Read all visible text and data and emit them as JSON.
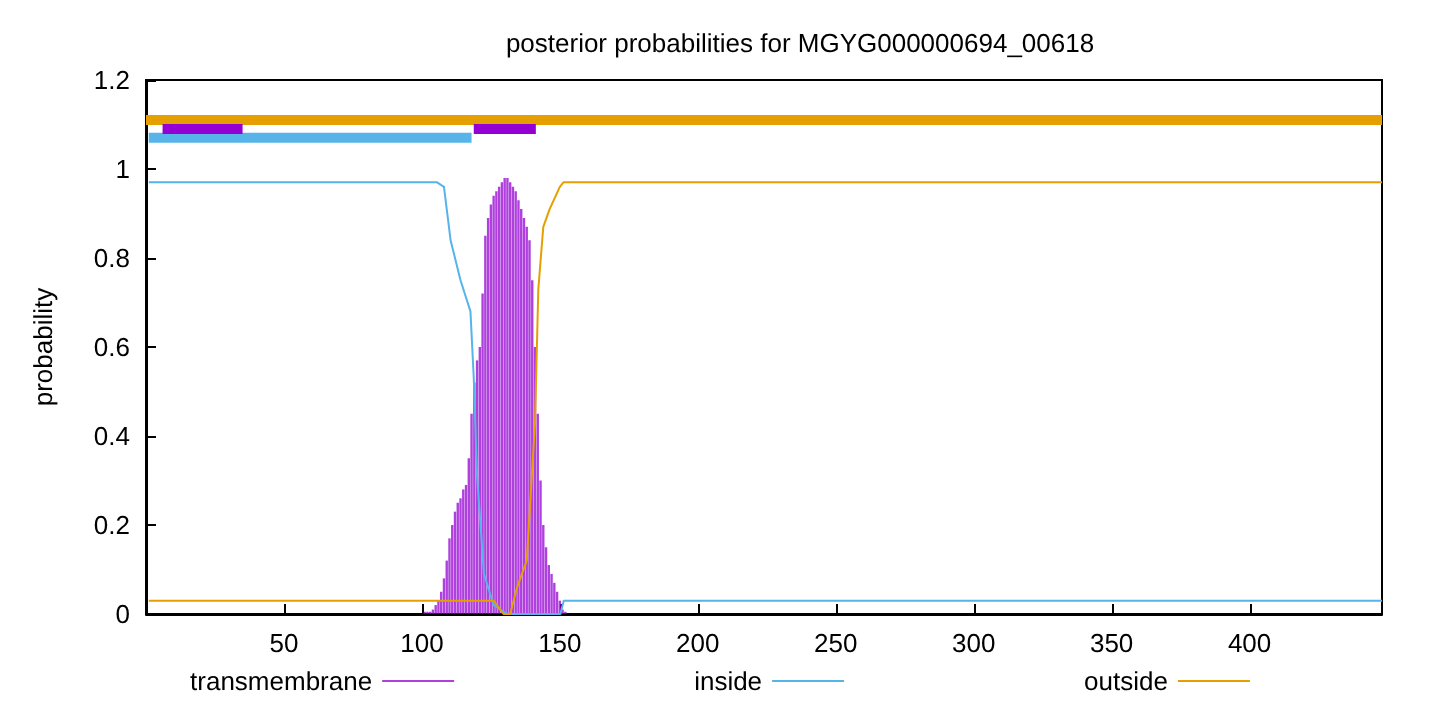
{
  "chart_data": {
    "type": "line",
    "title": "posterior probabilities for MGYG000000694_00618",
    "ylabel": "probability",
    "xlim": [
      0,
      448
    ],
    "xticks": [
      50,
      100,
      150,
      200,
      250,
      300,
      350,
      400
    ],
    "ylim": [
      0,
      1.2
    ],
    "yticks": [
      0,
      0.2,
      0.4,
      0.6,
      0.8,
      1,
      1.2
    ],
    "grid": false,
    "legend": "bottom",
    "marker": "none",
    "line_style": "solid",
    "series": [
      {
        "name": "transmembrane",
        "type": "bar",
        "color": "#9400d3",
        "x": [
          101,
          102,
          103,
          104,
          105,
          106,
          107,
          108,
          109,
          110,
          111,
          112,
          113,
          114,
          115,
          116,
          117,
          118,
          119,
          120,
          121,
          122,
          123,
          124,
          125,
          126,
          127,
          128,
          129,
          130,
          131,
          132,
          133,
          134,
          135,
          136,
          137,
          138,
          139,
          140,
          141,
          142,
          143,
          144,
          145,
          146,
          147,
          148,
          149,
          150,
          151,
          152
        ],
        "values": [
          0.005,
          0.005,
          0.005,
          0.01,
          0.02,
          0.03,
          0.05,
          0.08,
          0.12,
          0.17,
          0.2,
          0.23,
          0.25,
          0.26,
          0.28,
          0.29,
          0.35,
          0.45,
          0.52,
          0.57,
          0.6,
          0.72,
          0.85,
          0.89,
          0.92,
          0.94,
          0.95,
          0.96,
          0.97,
          0.98,
          0.98,
          0.97,
          0.96,
          0.95,
          0.93,
          0.91,
          0.89,
          0.87,
          0.84,
          0.75,
          0.6,
          0.45,
          0.3,
          0.2,
          0.15,
          0.11,
          0.09,
          0.07,
          0.05,
          0.03,
          0.01,
          0.005
        ]
      },
      {
        "name": "inside",
        "color": "#56b4e9",
        "x": [
          1,
          105.5,
          108,
          110.4,
          114,
          117.6,
          118.8,
          120,
          122.5,
          126,
          130.9,
          150.2,
          151.4,
          448
        ],
        "values": [
          0.97,
          0.97,
          0.96,
          0.84,
          0.75,
          0.68,
          0.53,
          0.31,
          0.09,
          0.02,
          0,
          0,
          0.03,
          0.03
        ]
      },
      {
        "name": "outside",
        "color": "#e69f00",
        "x": [
          1,
          126,
          127.2,
          129.6,
          132,
          134.5,
          138,
          141,
          142.2,
          144,
          146.3,
          150,
          151.3,
          448
        ],
        "values": [
          0.03,
          0.03,
          0.02,
          0,
          0,
          0.06,
          0.12,
          0.43,
          0.73,
          0.87,
          0.91,
          0.96,
          0.97,
          0.97
        ]
      },
      {
        "color": "#e69f00",
        "x": [
          0,
          448
        ],
        "values": [
          1.11,
          1.11
        ]
      },
      {
        "color": "#56b4e9",
        "x": [
          1,
          118
        ],
        "values": [
          1.07,
          1.07
        ]
      },
      {
        "color": "#9400d3",
        "x": [
          6,
          35
        ],
        "values": [
          1.09,
          1.09
        ]
      },
      {
        "color": "#9400d3",
        "x": [
          118.8,
          141.3
        ],
        "values": [
          1.09,
          1.09
        ]
      }
    ]
  }
}
